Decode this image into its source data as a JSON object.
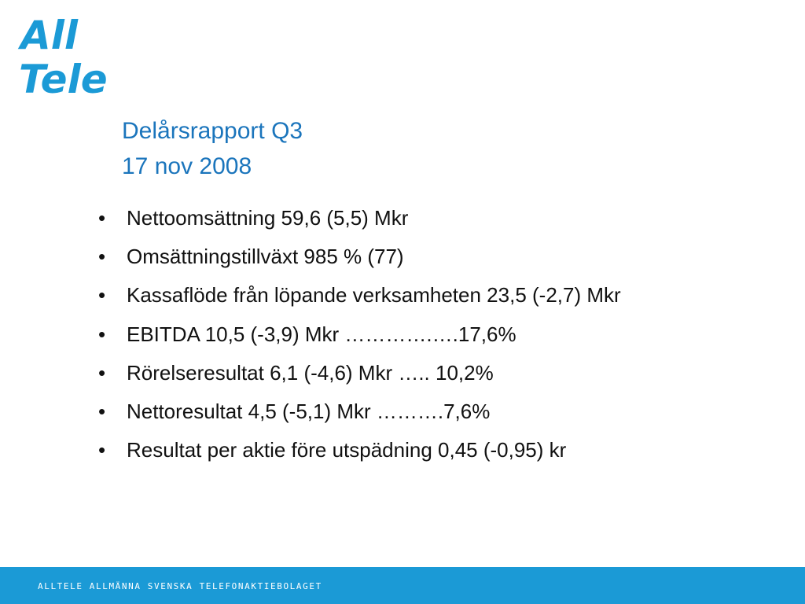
{
  "logo": {
    "line1": "All",
    "line2": "Tele",
    "color": "#1b9ad6"
  },
  "title": {
    "line1": "Delårsrapport Q3",
    "line2": "17 nov 2008",
    "color": "#1b75bc"
  },
  "bullets": [
    {
      "marker": "•",
      "text": "Nettoomsättning 59,6 (5,5) Mkr"
    },
    {
      "marker": "•",
      "text": "Omsättningstillväxt 985 %  (77)"
    },
    {
      "marker": "•",
      "text": "Kassaflöde från löpande verksamheten 23,5  (-2,7) Mkr"
    },
    {
      "marker": "•",
      "text": "EBITDA 10,5 (-3,9) Mkr  ………….….17,6%"
    },
    {
      "marker": "•",
      "text": "Rörelseresultat 6,1 (-4,6) Mkr  ….. 10,2%"
    },
    {
      "marker": "•",
      "text": "Nettoresultat 4,5 (-5,1) Mkr  ……….7,6%"
    },
    {
      "marker": "•",
      "text": "Resultat per aktie före utspädning 0,45 (-0,95) kr"
    }
  ],
  "footer": {
    "text": "ALLTELE ALLMÄNNA SVENSKA TELEFONAKTIEBOLAGET",
    "color": "#1b9ad6"
  }
}
